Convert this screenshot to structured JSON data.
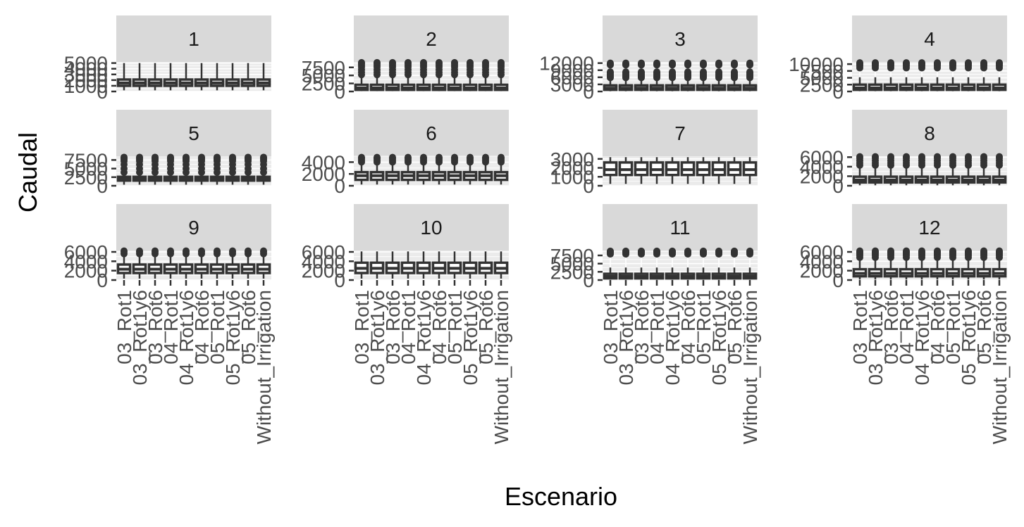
{
  "chart_data": {
    "type": "boxplot",
    "facet_by": "month",
    "xlabel": "Escenario",
    "ylabel": "Caudal",
    "categories": [
      "03_Rot1",
      "03_Rot1y6",
      "03_Rot6",
      "04_Rot1",
      "04_Rot1y6",
      "04_Rot6",
      "05_Rot1",
      "05_Rot1y6",
      "05_Rot6",
      "Without_Irrigation"
    ],
    "grid": true,
    "legend": "none",
    "colors": {
      "panel": "#ebebeb",
      "strip": "#d9d9d9",
      "grid": "#ffffff",
      "box": "#333333",
      "tick": "#333333",
      "tick_label": "#4d4d4d"
    },
    "panels": [
      {
        "label": "1",
        "ylim": [
          0,
          5200
        ],
        "yticks": [
          0,
          1000,
          2000,
          3000,
          4000,
          5000
        ],
        "ytick_labels": [
          "0",
          "1000",
          "2000",
          "3000",
          "4000",
          "5000"
        ],
        "box": {
          "q1": 1000,
          "median": 1500,
          "q3": 2100,
          "whisker_low": 200,
          "whisker_high": 5000
        },
        "outliers": []
      },
      {
        "label": "2",
        "ylim": [
          0,
          9200
        ],
        "yticks": [
          0,
          2500,
          5000,
          7500
        ],
        "ytick_labels": [
          "0",
          "2500",
          "5000",
          "7500"
        ],
        "box": {
          "q1": 500,
          "median": 1100,
          "q3": 2100,
          "whisker_low": 100,
          "whisker_high": 4700
        },
        "outliers": [
          5200,
          6000,
          6800,
          7600,
          8200,
          8700,
          9000
        ]
      },
      {
        "label": "3",
        "ylim": [
          0,
          12500
        ],
        "yticks": [
          0,
          3000,
          6000,
          9000,
          12000
        ],
        "ytick_labels": [
          "0",
          "3000",
          "6000",
          "9000",
          "12000"
        ],
        "box": {
          "q1": 700,
          "median": 1400,
          "q3": 2600,
          "whisker_low": 100,
          "whisker_high": 5400
        },
        "outliers": [
          5800,
          6300,
          6800,
          7300,
          7800,
          8300,
          11200,
          11600,
          12000
        ]
      },
      {
        "label": "4",
        "ylim": [
          0,
          10800
        ],
        "yticks": [
          0,
          2500,
          5000,
          7500,
          10000
        ],
        "ytick_labels": [
          "0",
          "2500",
          "5000",
          "7500",
          "10000"
        ],
        "box": {
          "q1": 600,
          "median": 1300,
          "q3": 2500,
          "whisker_low": 100,
          "whisker_high": 5200
        },
        "outliers": [
          8600,
          9300,
          9800,
          10200,
          10500
        ]
      },
      {
        "label": "5",
        "ylim": [
          0,
          8600
        ],
        "yticks": [
          0,
          2500,
          5000,
          7500
        ],
        "ytick_labels": [
          "0",
          "2500",
          "5000",
          "7500"
        ],
        "box": {
          "q1": 1500,
          "median": 2000,
          "q3": 2600,
          "whisker_low": 300,
          "whisker_high": 3600
        },
        "outliers": [
          3900,
          5000,
          6200,
          7200,
          7700,
          8000,
          8300
        ]
      },
      {
        "label": "6",
        "ylim": [
          0,
          5000
        ],
        "yticks": [
          0,
          2000,
          4000
        ],
        "ytick_labels": [
          "0",
          "2000",
          "4000"
        ],
        "box": {
          "q1": 1000,
          "median": 1700,
          "q3": 2300,
          "whisker_low": 200,
          "whisker_high": 3700
        },
        "outliers": [
          4000,
          4300,
          4600,
          4800
        ]
      },
      {
        "label": "7",
        "ylim": [
          0,
          3300
        ],
        "yticks": [
          0,
          1000,
          2000,
          3000
        ],
        "ytick_labels": [
          "0",
          "1000",
          "2000",
          "3000"
        ],
        "box": {
          "q1": 1200,
          "median": 1800,
          "q3": 2600,
          "whisker_low": 200,
          "whisker_high": 3200
        },
        "outliers": []
      },
      {
        "label": "8",
        "ylim": [
          0,
          6200
        ],
        "yticks": [
          0,
          2000,
          4000,
          6000
        ],
        "ytick_labels": [
          "0",
          "2000",
          "4000",
          "6000"
        ],
        "box": {
          "q1": 700,
          "median": 1200,
          "q3": 1900,
          "whisker_low": 100,
          "whisker_high": 3800
        },
        "outliers": [
          4300,
          4800,
          5300,
          5800,
          6100
        ]
      },
      {
        "label": "9",
        "ylim": [
          0,
          6300
        ],
        "yticks": [
          0,
          2000,
          4000,
          6000
        ],
        "ytick_labels": [
          "0",
          "2000",
          "4000",
          "6000"
        ],
        "box": {
          "q1": 1500,
          "median": 2300,
          "q3": 3300,
          "whisker_low": 300,
          "whisker_high": 5000
        },
        "outliers": [
          5600,
          6000,
          6200
        ]
      },
      {
        "label": "10",
        "ylim": [
          0,
          6300
        ],
        "yticks": [
          0,
          2000,
          4000,
          6000
        ],
        "ytick_labels": [
          "0",
          "2000",
          "4000",
          "6000"
        ],
        "box": {
          "q1": 1500,
          "median": 2500,
          "q3": 3700,
          "whisker_low": 300,
          "whisker_high": 6100
        },
        "outliers": []
      },
      {
        "label": "11",
        "ylim": [
          0,
          9000
        ],
        "yticks": [
          0,
          2500,
          5000,
          7500
        ],
        "ytick_labels": [
          "0",
          "2500",
          "5000",
          "7500"
        ],
        "box": {
          "q1": 500,
          "median": 1100,
          "q3": 1900,
          "whisker_low": 100,
          "whisker_high": 3800
        },
        "outliers": [
          7900,
          8300,
          8600,
          8800
        ]
      },
      {
        "label": "12",
        "ylim": [
          0,
          6300
        ],
        "yticks": [
          0,
          2000,
          4000,
          6000
        ],
        "ytick_labels": [
          "0",
          "2000",
          "4000",
          "6000"
        ],
        "box": {
          "q1": 800,
          "median": 1400,
          "q3": 2300,
          "whisker_low": 100,
          "whisker_high": 4300
        },
        "outliers": [
          4800,
          5200,
          5500,
          5800,
          6000,
          6200
        ]
      }
    ]
  }
}
